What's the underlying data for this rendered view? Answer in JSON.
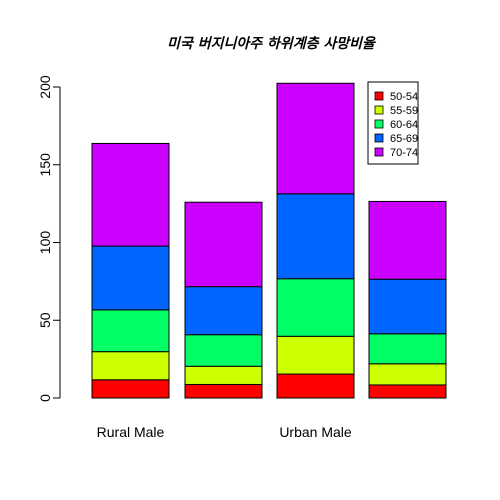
{
  "chart_data": {
    "type": "bar",
    "stacked": true,
    "title": "미국 버지니아주 하위계층 사망비율",
    "xlabel": "",
    "ylabel": "",
    "ylim": [
      0,
      205
    ],
    "yticks": [
      0,
      50,
      100,
      150,
      200
    ],
    "categories": [
      "Rural Male",
      "",
      "Urban Male",
      ""
    ],
    "series": [
      {
        "name": "50-54",
        "color": "#FF0000",
        "values": [
          11.7,
          8.7,
          15.4,
          8.4
        ]
      },
      {
        "name": "55-59",
        "color": "#CCFF00",
        "values": [
          18.1,
          11.7,
          24.3,
          13.6
        ]
      },
      {
        "name": "60-64",
        "color": "#00FF66",
        "values": [
          26.9,
          20.3,
          37.0,
          19.3
        ]
      },
      {
        "name": "65-69",
        "color": "#0066FF",
        "values": [
          41.0,
          30.9,
          54.6,
          35.1
        ]
      },
      {
        "name": "70-74",
        "color": "#CC00FF",
        "values": [
          66.0,
          54.3,
          71.1,
          50.0
        ]
      }
    ],
    "legend": "top-right",
    "grid": false
  }
}
